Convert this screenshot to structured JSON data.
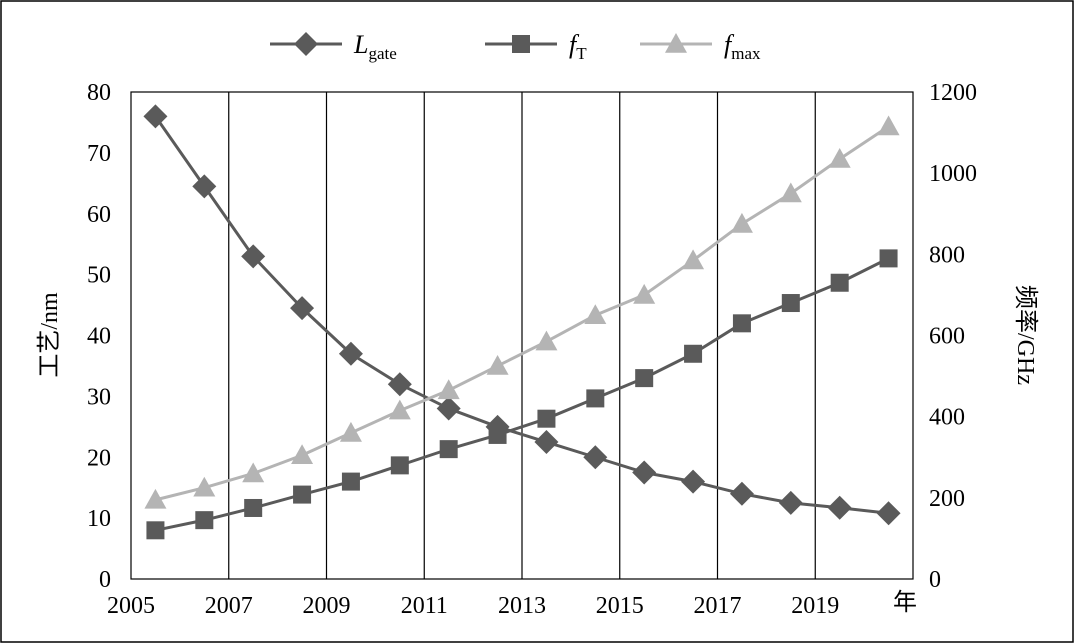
{
  "chart_data": {
    "type": "line",
    "x": [
      2005.5,
      2006.5,
      2007.5,
      2008.5,
      2009.5,
      2010.5,
      2011.5,
      2012.5,
      2013.5,
      2014.5,
      2015.5,
      2016.5,
      2017.5,
      2018.5,
      2019.5,
      2020.5
    ],
    "xlim": [
      2005,
      2021
    ],
    "xticks": [
      "2005",
      "2007",
      "2009",
      "2011",
      "2013",
      "2015",
      "2017",
      "2019"
    ],
    "xlabel": "年",
    "ylabel": "工艺/nm",
    "ylim": [
      0,
      80
    ],
    "yticks": [
      "0",
      "10",
      "20",
      "30",
      "40",
      "50",
      "60",
      "70",
      "80"
    ],
    "y2label": "频率/GHz",
    "y2lim": [
      0,
      1200
    ],
    "y2ticks": [
      "0",
      "200",
      "400",
      "600",
      "800",
      "1000",
      "1200"
    ],
    "grid": "vertical",
    "legend": "top",
    "series": [
      {
        "name": "L",
        "name_sub": "gate",
        "axis": "left",
        "marker": "diamond",
        "color": "#5a5a5a",
        "values": [
          76,
          64.5,
          53,
          44.5,
          37,
          32,
          28,
          25,
          22.5,
          20,
          17.5,
          16,
          14,
          12.5,
          11.7,
          10.8
        ]
      },
      {
        "name": "f",
        "name_sub": "T",
        "axis": "right",
        "marker": "square",
        "color": "#5a5a5a",
        "values": [
          120,
          145,
          175,
          208,
          240,
          280,
          320,
          355,
          395,
          445,
          495,
          555,
          630,
          680,
          730,
          790
        ]
      },
      {
        "name": "f",
        "name_sub": "max",
        "axis": "right",
        "marker": "triangle",
        "color": "#b4b4b4",
        "values": [
          195,
          225,
          260,
          305,
          360,
          415,
          465,
          525,
          585,
          650,
          700,
          785,
          875,
          950,
          1035,
          1115
        ]
      }
    ]
  }
}
